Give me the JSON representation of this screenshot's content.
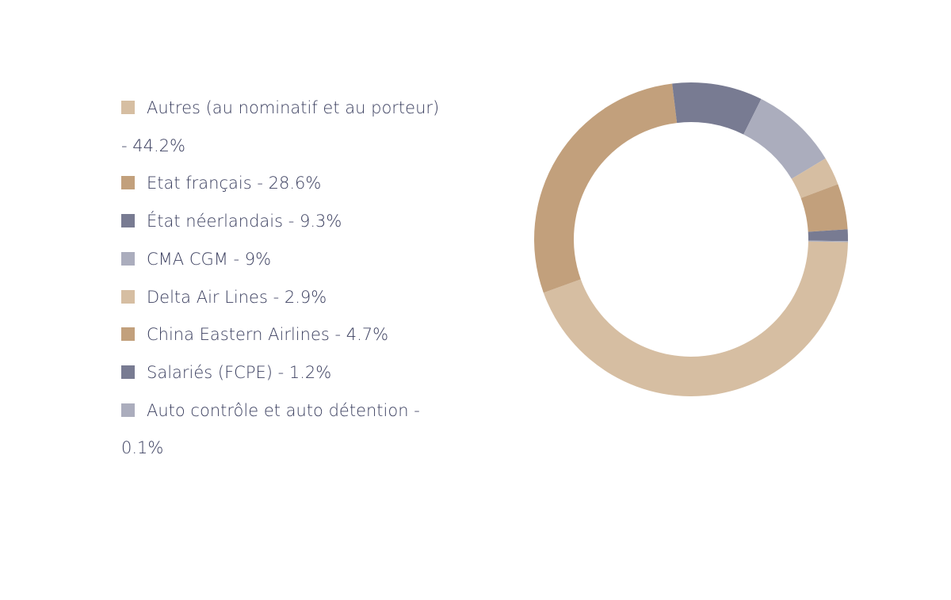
{
  "chart_data": {
    "type": "donut",
    "categories": [
      "Autres (au nominatif et au porteur) - 44.2%",
      "Etat français - 28.6%",
      "État néerlandais - 9.3%",
      "CMA CGM - 9%",
      "Delta Air Lines - 2.9%",
      "China Eastern Airlines - 4.7%",
      "Salariés (FCPE) - 1.2%",
      "Auto contrôle et auto détention - 0.1%"
    ],
    "values": [
      44.2,
      28.6,
      9.3,
      9,
      2.9,
      4.7,
      1.2,
      0.1
    ],
    "colors": [
      "#d6bea2",
      "#c2a07c",
      "#787b92",
      "#abadbd",
      "#d6bea2",
      "#c2a07c",
      "#787b92",
      "#abadbd"
    ],
    "legend": "left"
  }
}
